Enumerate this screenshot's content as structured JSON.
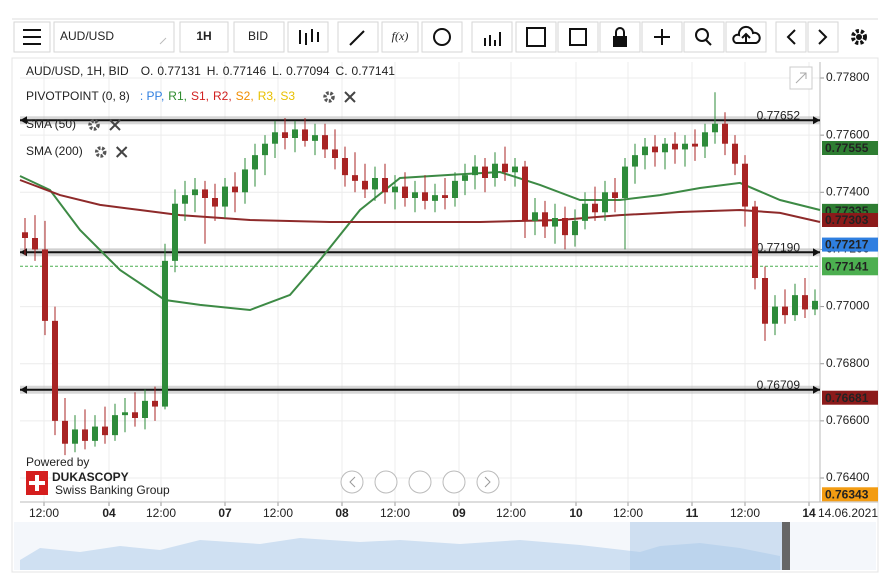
{
  "toolbar": {
    "symbol": "AUD/USD",
    "period": "1H",
    "side": "BID",
    "fx": "f(x)"
  },
  "chart_data": {
    "type": "candlestick",
    "info": "AUD/USD, 1H, BID",
    "ohlc": [
      {
        "label": "O.",
        "value": 0.77131
      },
      {
        "label": "H.",
        "value": 0.77146
      },
      {
        "label": "L.",
        "value": 0.77094
      },
      {
        "label": "C.",
        "value": 0.77141
      }
    ],
    "pivot": {
      "label": "PIVOTPOINT (0, 8)",
      "items": [
        {
          "name": ": PP,",
          "color": "#2f7fe0"
        },
        {
          "name": "R1,",
          "color": "#2e8b2e"
        },
        {
          "name": "S1,",
          "color": "#d12020"
        },
        {
          "name": "R2,",
          "color": "#d12020"
        },
        {
          "name": "S2,",
          "color": "#f08c00"
        },
        {
          "name": "R3,",
          "color": "#e8c000"
        },
        {
          "name": "S3",
          "color": "#e8c000"
        }
      ]
    },
    "ylim": [
      0.76316,
      0.77856
    ],
    "yticks": [
      {
        "value": 0.778,
        "label": "0.77800"
      },
      {
        "value": 0.776,
        "label": "0.77600"
      },
      {
        "value": 0.774,
        "label": "0.77400"
      },
      {
        "value": 0.772,
        "label": "0.77200"
      },
      {
        "value": 0.77,
        "label": "0.77000"
      },
      {
        "value": 0.768,
        "label": "0.76800"
      },
      {
        "value": 0.766,
        "label": "0.76600"
      },
      {
        "value": 0.764,
        "label": "0.76400"
      }
    ],
    "xlim": [
      0,
      80
    ],
    "xticks": [
      {
        "value": 2.4,
        "label": "12:00"
      },
      {
        "value": 8.9,
        "label": "04"
      },
      {
        "value": 14.1,
        "label": "12:00"
      },
      {
        "value": 20.5,
        "label": "07"
      },
      {
        "value": 25.8,
        "label": "12:00"
      },
      {
        "value": 32.2,
        "label": "08"
      },
      {
        "value": 37.5,
        "label": "12:00"
      },
      {
        "value": 43.9,
        "label": "09"
      },
      {
        "value": 49.1,
        "label": "12:00"
      },
      {
        "value": 55.6,
        "label": "10"
      },
      {
        "value": 60.8,
        "label": "12:00"
      },
      {
        "value": 67.2,
        "label": "11"
      },
      {
        "value": 72.5,
        "label": "12:00"
      },
      {
        "value": 78.9,
        "label": "14"
      }
    ],
    "date": "14.06.2021",
    "grid": true,
    "up_color": "#2e8b3a",
    "down_color": "#a82424",
    "candles": [
      [
        0.7726,
        0.7731,
        0.7718,
        0.7724
      ],
      [
        0.7724,
        0.7732,
        0.7716,
        0.772
      ],
      [
        0.772,
        0.773,
        0.769,
        0.7695
      ],
      [
        0.7695,
        0.77,
        0.7655,
        0.766
      ],
      [
        0.766,
        0.7668,
        0.7648,
        0.7652
      ],
      [
        0.7652,
        0.7662,
        0.7649,
        0.7657
      ],
      [
        0.7657,
        0.7664,
        0.765,
        0.7653
      ],
      [
        0.7653,
        0.7662,
        0.7651,
        0.7658
      ],
      [
        0.7658,
        0.7665,
        0.7652,
        0.7655
      ],
      [
        0.7655,
        0.7666,
        0.7653,
        0.7662
      ],
      [
        0.7662,
        0.7668,
        0.7656,
        0.7663
      ],
      [
        0.7663,
        0.767,
        0.7658,
        0.7661
      ],
      [
        0.7661,
        0.7671,
        0.7657,
        0.7667
      ],
      [
        0.7667,
        0.7672,
        0.766,
        0.7665
      ],
      [
        0.7665,
        0.7722,
        0.7664,
        0.7716
      ],
      [
        0.7716,
        0.7741,
        0.7712,
        0.7736
      ],
      [
        0.7736,
        0.7744,
        0.773,
        0.7739
      ],
      [
        0.7739,
        0.7745,
        0.7733,
        0.7741
      ],
      [
        0.7741,
        0.7744,
        0.7722,
        0.7738
      ],
      [
        0.7738,
        0.7743,
        0.773,
        0.7735
      ],
      [
        0.7735,
        0.7745,
        0.7731,
        0.7742
      ],
      [
        0.7742,
        0.7747,
        0.7733,
        0.774
      ],
      [
        0.774,
        0.7752,
        0.7736,
        0.7748
      ],
      [
        0.7748,
        0.7757,
        0.7742,
        0.7753
      ],
      [
        0.7753,
        0.776,
        0.7746,
        0.7757
      ],
      [
        0.7757,
        0.7765,
        0.7752,
        0.7761
      ],
      [
        0.7761,
        0.7766,
        0.7755,
        0.7759
      ],
      [
        0.7759,
        0.7765,
        0.7754,
        0.7762
      ],
      [
        0.7762,
        0.7766,
        0.7756,
        0.7758
      ],
      [
        0.7758,
        0.7764,
        0.7753,
        0.776
      ],
      [
        0.776,
        0.7764,
        0.7752,
        0.7755
      ],
      [
        0.7755,
        0.7762,
        0.7748,
        0.7752
      ],
      [
        0.7752,
        0.7756,
        0.7742,
        0.7746
      ],
      [
        0.7746,
        0.7754,
        0.774,
        0.7744
      ],
      [
        0.7744,
        0.775,
        0.7738,
        0.7741
      ],
      [
        0.7741,
        0.7749,
        0.7737,
        0.7745
      ],
      [
        0.7745,
        0.775,
        0.7736,
        0.774
      ],
      [
        0.774,
        0.7746,
        0.7734,
        0.7742
      ],
      [
        0.7742,
        0.7747,
        0.7735,
        0.7738
      ],
      [
        0.7738,
        0.7744,
        0.7733,
        0.774
      ],
      [
        0.774,
        0.7746,
        0.7734,
        0.7737
      ],
      [
        0.7737,
        0.7743,
        0.7733,
        0.7739
      ],
      [
        0.7739,
        0.7745,
        0.7734,
        0.7738
      ],
      [
        0.7738,
        0.7747,
        0.7735,
        0.7744
      ],
      [
        0.7744,
        0.775,
        0.7739,
        0.7746
      ],
      [
        0.7746,
        0.7753,
        0.7741,
        0.7749
      ],
      [
        0.7749,
        0.7752,
        0.774,
        0.7745
      ],
      [
        0.7745,
        0.7754,
        0.7742,
        0.775
      ],
      [
        0.775,
        0.7756,
        0.7744,
        0.7747
      ],
      [
        0.7747,
        0.7752,
        0.7742,
        0.7749
      ],
      [
        0.7749,
        0.7751,
        0.7724,
        0.773
      ],
      [
        0.773,
        0.7738,
        0.7725,
        0.7733
      ],
      [
        0.7733,
        0.7737,
        0.7724,
        0.7728
      ],
      [
        0.7728,
        0.7736,
        0.7722,
        0.7731
      ],
      [
        0.7731,
        0.7735,
        0.772,
        0.7725
      ],
      [
        0.7725,
        0.7734,
        0.7721,
        0.773
      ],
      [
        0.773,
        0.774,
        0.7727,
        0.7736
      ],
      [
        0.7736,
        0.7742,
        0.773,
        0.7733
      ],
      [
        0.7733,
        0.7744,
        0.773,
        0.774
      ],
      [
        0.774,
        0.7745,
        0.7733,
        0.7738
      ],
      [
        0.7738,
        0.7752,
        0.772,
        0.7749
      ],
      [
        0.7749,
        0.7757,
        0.7743,
        0.7753
      ],
      [
        0.7753,
        0.7759,
        0.7748,
        0.7756
      ],
      [
        0.7756,
        0.776,
        0.7749,
        0.7754
      ],
      [
        0.7754,
        0.7759,
        0.7748,
        0.7757
      ],
      [
        0.7757,
        0.7761,
        0.775,
        0.7755
      ],
      [
        0.7755,
        0.776,
        0.7749,
        0.7757
      ],
      [
        0.7757,
        0.7762,
        0.7751,
        0.7756
      ],
      [
        0.7756,
        0.7764,
        0.7752,
        0.7761
      ],
      [
        0.7761,
        0.7775,
        0.7757,
        0.7764
      ],
      [
        0.7764,
        0.7768,
        0.7753,
        0.7757
      ],
      [
        0.7757,
        0.776,
        0.7746,
        0.775
      ],
      [
        0.775,
        0.7753,
        0.7728,
        0.7735
      ],
      [
        0.7735,
        0.7737,
        0.7706,
        0.771
      ],
      [
        0.771,
        0.7714,
        0.7688,
        0.7694
      ],
      [
        0.7694,
        0.7704,
        0.769,
        0.77
      ],
      [
        0.77,
        0.7706,
        0.7694,
        0.7697
      ],
      [
        0.7697,
        0.7708,
        0.7695,
        0.7704
      ],
      [
        0.7704,
        0.771,
        0.7696,
        0.7699
      ],
      [
        0.7699,
        0.7706,
        0.7697,
        0.7702
      ]
    ],
    "series": [
      {
        "name": "SMA (50)",
        "color": "#3d8a45",
        "x": [
          0,
          3,
          6,
          10,
          14.5,
          18,
          23,
          27,
          30,
          34,
          38,
          43,
          48,
          52,
          56,
          60,
          64,
          68,
          72,
          76,
          80
        ],
        "values": [
          0.77457,
          0.77408,
          0.77268,
          0.77128,
          0.77023,
          0.77006,
          0.76988,
          0.77041,
          0.77163,
          0.77338,
          0.7745,
          0.77461,
          0.77471,
          0.77426,
          0.77373,
          0.77373,
          0.7739,
          0.77415,
          0.77433,
          0.77373,
          0.77338
        ]
      },
      {
        "name": "SMA (200)",
        "color": "#8e2a2a",
        "x": [
          0,
          4,
          8,
          12,
          16,
          23,
          31,
          38,
          46,
          54,
          60,
          66,
          72,
          76,
          80
        ],
        "values": [
          0.77443,
          0.7739,
          0.77356,
          0.77338,
          0.7732,
          0.77303,
          0.77296,
          0.77296,
          0.77296,
          0.77303,
          0.7732,
          0.77331,
          0.77338,
          0.77328,
          0.77296
        ]
      }
    ],
    "levels": [
      0.77652,
      {
        "value": 0.7719,
        "label": "0.77190"
      },
      0.76709
    ],
    "current": 0.77141,
    "current_color": "#4caf50",
    "price_tags": [
      {
        "value": 0.77555,
        "color": "#2e7d32"
      },
      {
        "value": 0.77335,
        "color": "#2e7d32"
      },
      {
        "value": 0.77303,
        "color": "#8b1a1a"
      },
      {
        "value": 0.77217,
        "color": "#2f7fe0"
      },
      {
        "value": 0.77141,
        "color": "#4caf50"
      },
      {
        "value": 0.76681,
        "color": "#8b1a1a"
      },
      {
        "value": 0.76343,
        "color": "#f39c12"
      }
    ]
  },
  "brand": {
    "powered": "Powered by",
    "name": "DUKASCOPY",
    "tagline": "Swiss Banking Group"
  }
}
